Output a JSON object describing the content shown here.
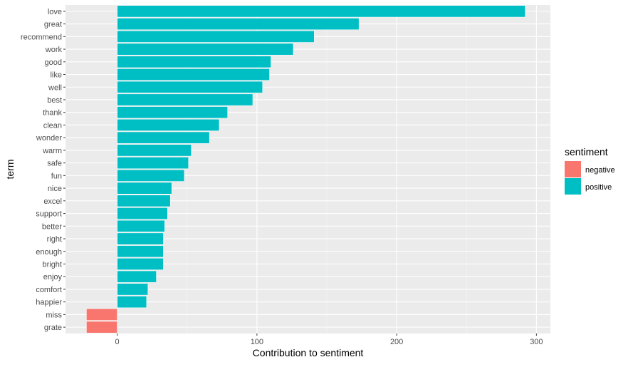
{
  "chart_data": {
    "type": "bar",
    "orientation": "horizontal",
    "xlabel": "Contribution to sentiment",
    "ylabel": "term",
    "xlim": [
      -37,
      310
    ],
    "x_ticks": [
      0,
      100,
      200,
      300
    ],
    "grid": true,
    "legend": {
      "title": "sentiment",
      "position": "right",
      "entries": [
        {
          "label": "negative",
          "color": "#F8766D"
        },
        {
          "label": "positive",
          "color": "#00BFC4"
        }
      ]
    },
    "categories": [
      "love",
      "great",
      "recommend",
      "work",
      "good",
      "like",
      "well",
      "best",
      "thank",
      "clean",
      "wonder",
      "warm",
      "safe",
      "fun",
      "nice",
      "excel",
      "support",
      "better",
      "right",
      "enough",
      "bright",
      "enjoy",
      "comfort",
      "happier",
      "miss",
      "grate"
    ],
    "values": [
      292,
      173,
      141,
      126,
      110,
      109,
      104,
      97,
      79,
      73,
      66,
      53,
      51,
      48,
      39,
      38,
      36,
      34,
      33,
      33,
      33,
      28,
      22,
      21,
      -22,
      -22
    ],
    "sentiment": [
      "positive",
      "positive",
      "positive",
      "positive",
      "positive",
      "positive",
      "positive",
      "positive",
      "positive",
      "positive",
      "positive",
      "positive",
      "positive",
      "positive",
      "positive",
      "positive",
      "positive",
      "positive",
      "positive",
      "positive",
      "positive",
      "positive",
      "positive",
      "positive",
      "negative",
      "negative"
    ]
  }
}
